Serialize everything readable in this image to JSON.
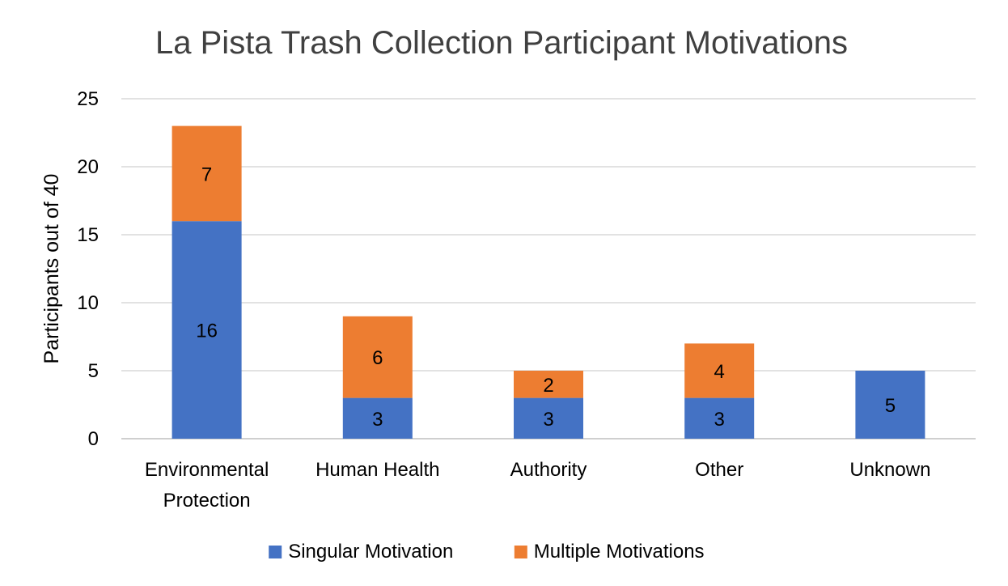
{
  "chart_data": {
    "type": "bar",
    "stacked": true,
    "title": "La Pista Trash Collection  Participant Motivations",
    "xlabel": "",
    "ylabel": "Participants out of 40",
    "ylim": [
      0,
      25
    ],
    "yticks": [
      0,
      5,
      10,
      15,
      20,
      25
    ],
    "grid": true,
    "legend_position": "bottom",
    "categories": [
      [
        "Environmental",
        "Protection"
      ],
      [
        "Human Health"
      ],
      [
        "Authority"
      ],
      [
        "Other"
      ],
      [
        "Unknown"
      ]
    ],
    "series": [
      {
        "name": "Singular Motivation",
        "color": "#4472C4",
        "values": [
          16,
          3,
          3,
          3,
          5
        ]
      },
      {
        "name": "Multiple Motivations",
        "color": "#ED7D31",
        "values": [
          7,
          6,
          2,
          4,
          0
        ]
      }
    ]
  }
}
